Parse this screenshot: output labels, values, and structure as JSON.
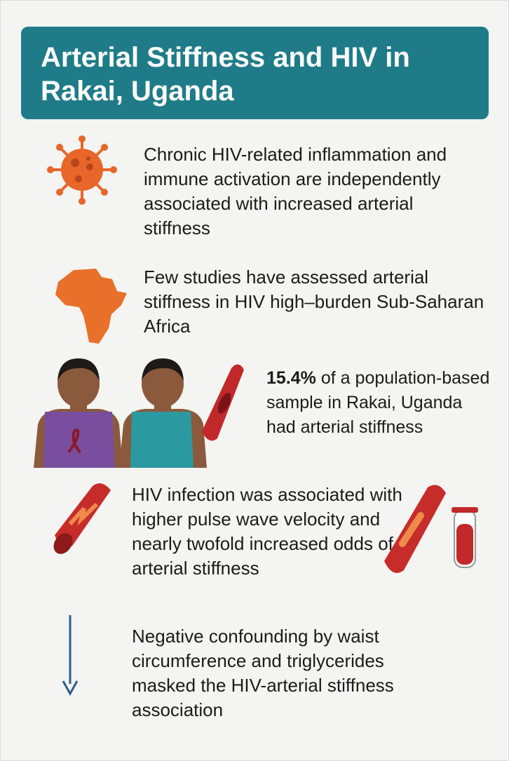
{
  "header": {
    "title": "Arterial Stiffness and HIV in Rakai, Uganda"
  },
  "items": [
    {
      "text": "Chronic HIV-related inflammation and immune activation are independently associated with increased arterial stiffness"
    },
    {
      "text": "Few studies have assessed arterial stiffness in HIV high–burden Sub-Saharan Africa"
    },
    {
      "highlight": "15.4%",
      "text": "of a population-based sample in Rakai, Uganda had arterial stiffness"
    },
    {
      "text": "HIV infection was associated with higher pulse wave velocity and nearly twofold increased odds of arterial stiffness"
    },
    {
      "text": "Negative confounding by waist circumference and triglycerides masked the HIV-arterial stiffness association"
    }
  ]
}
